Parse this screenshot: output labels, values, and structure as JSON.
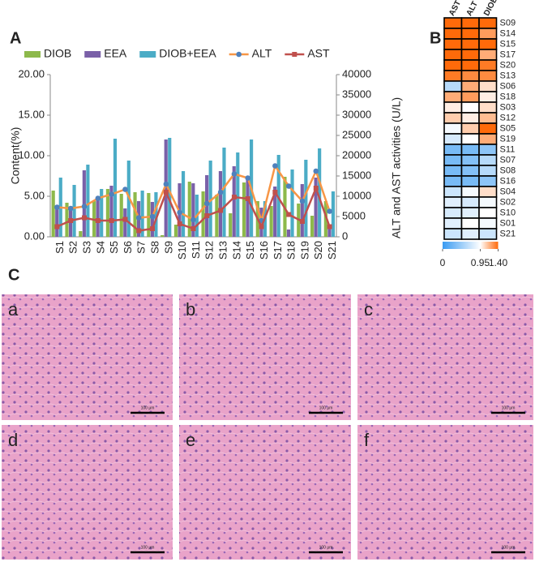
{
  "panel_labels": [
    "A",
    "B",
    "C"
  ],
  "chart_data": [
    {
      "type": "bar",
      "categories": [
        "S1",
        "S2",
        "S3",
        "S4",
        "S5",
        "S6",
        "S7",
        "S8",
        "S9",
        "S10",
        "S11",
        "S12",
        "S13",
        "S14",
        "S15",
        "S16",
        "S17",
        "S18",
        "S19",
        "S20",
        "S21"
      ],
      "y_label": "Content(%)",
      "y2_label": "ALT and AST activities (U/L)",
      "ylim": [
        0,
        20
      ],
      "yticks": [
        {
          "value": 0,
          "label": "0.00"
        },
        {
          "value": 5,
          "label": "5.00"
        },
        {
          "value": 10,
          "label": "10.00"
        },
        {
          "value": 15,
          "label": "15.00"
        },
        {
          "value": 20,
          "label": "20.00"
        }
      ],
      "y2lim": [
        0,
        40000
      ],
      "y2ticks": [
        0,
        5000,
        10000,
        15000,
        20000,
        25000,
        30000,
        35000,
        40000
      ],
      "legend": "top",
      "series": [
        {
          "name": "DIOB",
          "type": "bar",
          "color": "#8db94b",
          "values": [
            5.7,
            4.2,
            0.7,
            4.4,
            5.9,
            5.3,
            5.5,
            5.4,
            0.2,
            1.5,
            6.8,
            5.6,
            5.2,
            2.9,
            6.7,
            4.4,
            3.8,
            7.4,
            4.1,
            2.6,
            4.4
          ]
        },
        {
          "name": "EEA",
          "type": "bar",
          "color": "#7a60a8",
          "values": [
            3.8,
            3.6,
            8.2,
            5.0,
            6.3,
            3.5,
            4.4,
            4.3,
            12.0,
            6.6,
            6.6,
            7.6,
            8.1,
            8.7,
            7.2,
            3.6,
            6.2,
            0.9,
            6.5,
            7.3,
            1.3
          ]
        },
        {
          "name": "DIOB+EEA",
          "type": "bar",
          "color": "#4bacc6",
          "values": [
            7.3,
            6.4,
            8.9,
            5.9,
            12.1,
            9.4,
            5.7,
            5.5,
            12.2,
            8.1,
            5.2,
            9.4,
            11.0,
            10.4,
            12.0,
            4.4,
            10.1,
            8.3,
            9.5,
            10.9,
            5.6
          ]
        },
        {
          "name": "ALT",
          "type": "line",
          "axis": "y2",
          "color": "#f79646",
          "marker": "circle",
          "marker_color": "#4f81bd",
          "values": [
            7300,
            7000,
            7500,
            9500,
            10500,
            11700,
            4700,
            5000,
            13000,
            6000,
            4200,
            8200,
            11000,
            15500,
            14500,
            4000,
            17500,
            12500,
            8800,
            16200,
            6300
          ]
        },
        {
          "name": "AST",
          "type": "line",
          "axis": "y2",
          "color": "#c0504d",
          "marker": "square",
          "marker_color": "#c0504d",
          "values": [
            2500,
            4000,
            4700,
            4000,
            4000,
            4300,
            1500,
            2000,
            11000,
            3200,
            2000,
            5200,
            6500,
            9800,
            9400,
            2500,
            11000,
            5500,
            3800,
            12000,
            2500
          ]
        }
      ]
    },
    {
      "type": "heatmap",
      "columns": [
        "AST",
        "ALT",
        "DIOB+EEA"
      ],
      "rows": [
        "S09",
        "S14",
        "S15",
        "S17",
        "S20",
        "S13",
        "S06",
        "S18",
        "S03",
        "S12",
        "S05",
        "S19",
        "S11",
        "S07",
        "S08",
        "S16",
        "S04",
        "S02",
        "S10",
        "S01",
        "S21"
      ],
      "values": [
        [
          1.4,
          1.4,
          1.4
        ],
        [
          1.4,
          1.4,
          1.25
        ],
        [
          1.4,
          1.4,
          1.4
        ],
        [
          1.4,
          1.4,
          1.2
        ],
        [
          1.4,
          1.4,
          1.35
        ],
        [
          1.35,
          1.3,
          1.3
        ],
        [
          0.6,
          1.2,
          1.05
        ],
        [
          1.2,
          1.25,
          1.0
        ],
        [
          1.0,
          0.95,
          1.05
        ],
        [
          1.1,
          1.0,
          1.15
        ],
        [
          0.9,
          1.1,
          1.4
        ],
        [
          0.75,
          0.95,
          1.2
        ],
        [
          0.3,
          0.3,
          0.4
        ],
        [
          0.3,
          0.35,
          0.6
        ],
        [
          0.3,
          0.35,
          0.6
        ],
        [
          0.3,
          0.3,
          0.4
        ],
        [
          0.7,
          0.9,
          1.05
        ],
        [
          0.8,
          0.75,
          0.9
        ],
        [
          0.75,
          0.8,
          0.95
        ],
        [
          0.8,
          0.95,
          0.9
        ],
        [
          0.7,
          0.8,
          0.7
        ]
      ],
      "colors": [
        "#3a9bf2",
        "#ffffff",
        "#ff6a0a"
      ],
      "colorbar_ticks": [
        0,
        0.95,
        {
          "value": 1.4,
          "label": "1.40"
        }
      ]
    }
  ],
  "micrographs": {
    "labels": [
      "a",
      "b",
      "c",
      "d",
      "e",
      "f"
    ],
    "scale_bar": "100 μm"
  }
}
